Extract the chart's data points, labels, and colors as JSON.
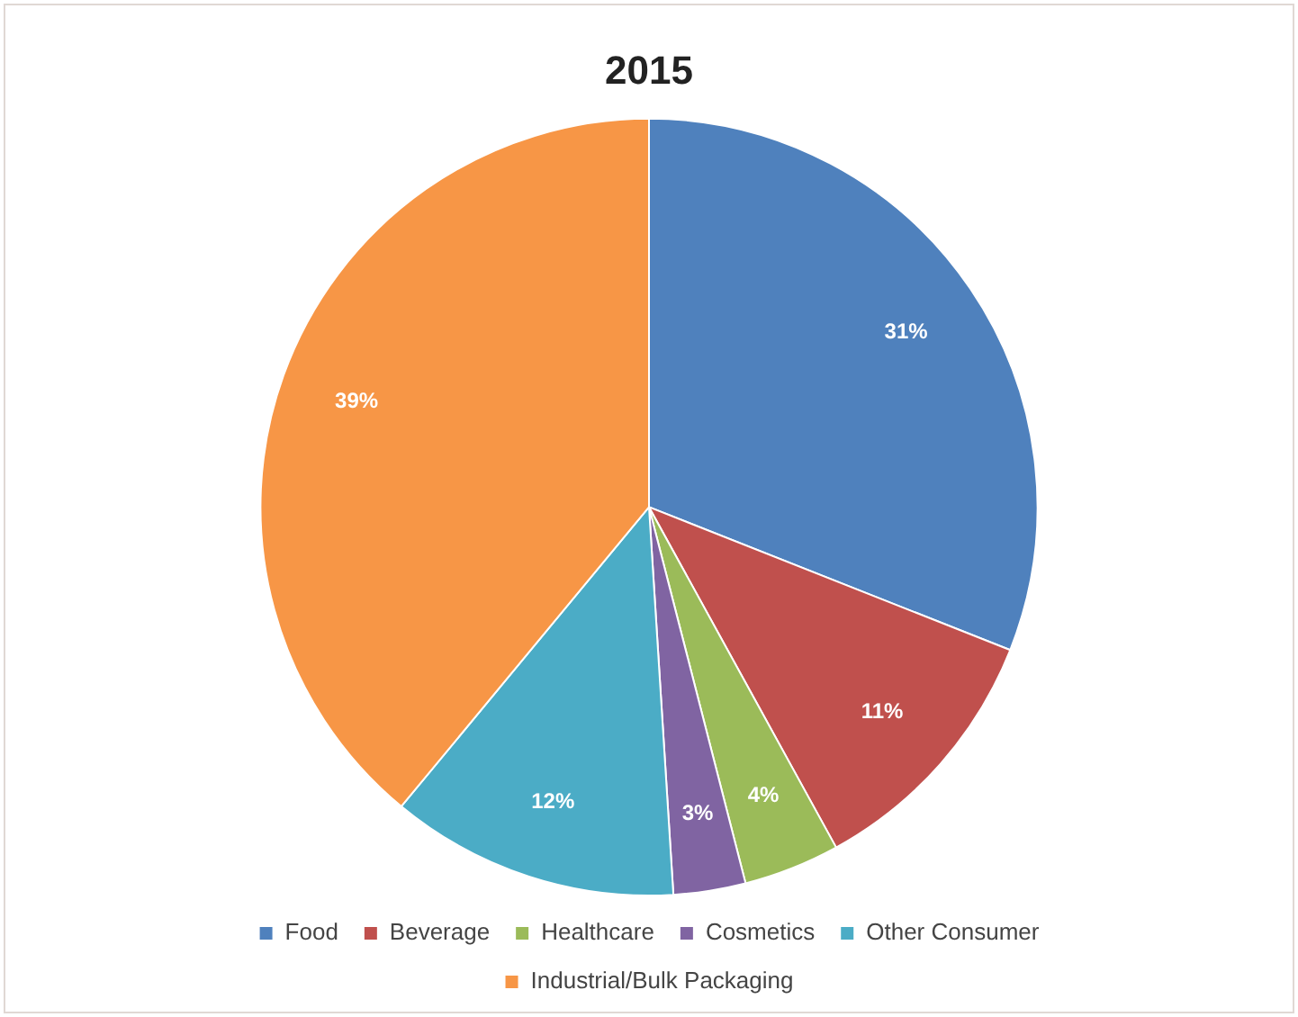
{
  "chart_data": {
    "type": "pie",
    "title": "2015",
    "categories": [
      "Food",
      "Beverage",
      "Healthcare",
      "Cosmetics",
      "Other Consumer",
      "Industrial/Bulk Packaging"
    ],
    "values": [
      31,
      11,
      4,
      3,
      12,
      39
    ],
    "colors": [
      "#4f81bd",
      "#c0504d",
      "#9bbb59",
      "#8064a2",
      "#4bacc6",
      "#f79646"
    ],
    "value_labels": [
      "31%",
      "11%",
      "4%",
      "3%",
      "12%",
      "39%"
    ],
    "legend": "bottom"
  }
}
